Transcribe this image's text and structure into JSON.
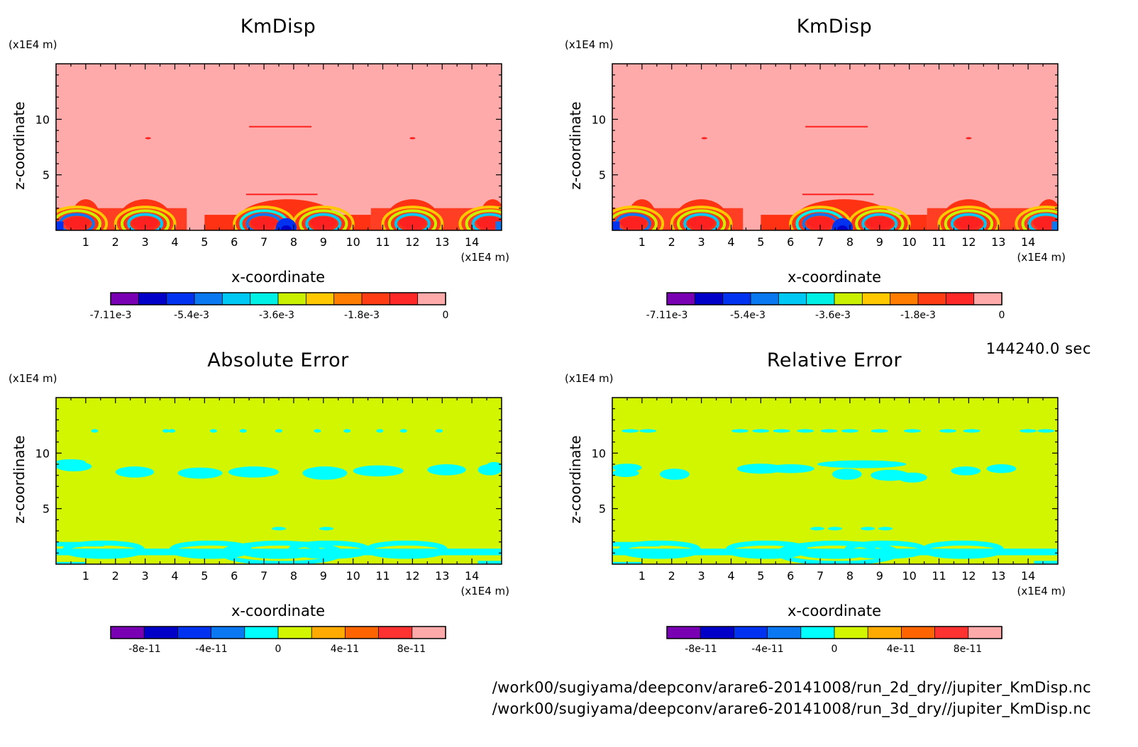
{
  "time_label": "144240.0 sec",
  "footer": {
    "file1": "/work00/sugiyama/deepconv/arare6-20141008/run_2d_dry//jupiter_KmDisp.nc",
    "file2": "/work00/sugiyama/deepconv/arare6-20141008/run_3d_dry//jupiter_KmDisp.nc"
  },
  "palette": [
    "#7a00b4",
    "#0000c8",
    "#0032f0",
    "#0a78f0",
    "#00c8f5",
    "#00f0e6",
    "#c8f000",
    "#ffc800",
    "#ff7d00",
    "#ff3c14",
    "#ff2828",
    "#ffaaaa"
  ],
  "chart_data": [
    {
      "id": "top-left",
      "type": "heatmap",
      "title": "KmDisp",
      "xlabel": "x-coordinate",
      "ylabel": "z-coordinate",
      "x_unit": "(x1E4 m)",
      "y_unit": "(x1E4 m)",
      "xlim": [
        0,
        15
      ],
      "ylim": [
        0,
        15
      ],
      "x_ticks": [
        "1",
        "2",
        "3",
        "4",
        "5",
        "6",
        "7",
        "8",
        "9",
        "10",
        "11",
        "12",
        "13",
        "14"
      ],
      "y_ticks": [
        "5",
        "10"
      ],
      "background_color": "#ffaaaa",
      "colorbar": {
        "colors": [
          "#7a00b4",
          "#0000c8",
          "#0032f0",
          "#0a78f0",
          "#00c8f5",
          "#00f0e6",
          "#c8f000",
          "#ffc800",
          "#ff7d00",
          "#ff3c14",
          "#ff2828",
          "#ffaaaa"
        ],
        "labels": [
          "-7.11e-3",
          "-5.4e-3",
          "-3.6e-3",
          "-1.8e-3",
          "0"
        ]
      },
      "features": "dispersion concentrated below z=2 (x1E4 m) in cells near x=3, x=7-9, x=12; thin negative bands near z=3.2 and z=9.3"
    },
    {
      "id": "top-right",
      "type": "heatmap",
      "title": "KmDisp",
      "xlabel": "x-coordinate",
      "ylabel": "z-coordinate",
      "x_unit": "(x1E4 m)",
      "y_unit": "(x1E4 m)",
      "xlim": [
        0,
        15
      ],
      "ylim": [
        0,
        15
      ],
      "x_ticks": [
        "1",
        "2",
        "3",
        "4",
        "5",
        "6",
        "7",
        "8",
        "9",
        "10",
        "11",
        "12",
        "13",
        "14"
      ],
      "y_ticks": [
        "5",
        "10"
      ],
      "background_color": "#ffaaaa",
      "colorbar": {
        "colors": [
          "#7a00b4",
          "#0000c8",
          "#0032f0",
          "#0a78f0",
          "#00c8f5",
          "#00f0e6",
          "#c8f000",
          "#ffc800",
          "#ff7d00",
          "#ff3c14",
          "#ff2828",
          "#ffaaaa"
        ],
        "labels": [
          "-7.11e-3",
          "-5.4e-3",
          "-3.6e-3",
          "-1.8e-3",
          "0"
        ]
      },
      "features": "identical to top-left"
    },
    {
      "id": "bottom-left",
      "type": "heatmap",
      "title": "Absolute Error",
      "xlabel": "x-coordinate",
      "ylabel": "z-coordinate",
      "x_unit": "(x1E4 m)",
      "y_unit": "(x1E4 m)",
      "xlim": [
        0,
        15
      ],
      "ylim": [
        0,
        15
      ],
      "x_ticks": [
        "1",
        "2",
        "3",
        "4",
        "5",
        "6",
        "7",
        "8",
        "9",
        "10",
        "11",
        "12",
        "13",
        "14"
      ],
      "y_ticks": [
        "5",
        "10"
      ],
      "background_color": "#d2f500",
      "colorbar": {
        "colors": [
          "#7a00b4",
          "#0000c8",
          "#0032f0",
          "#0a78f0",
          "#00ffff",
          "#d2f500",
          "#ffaa00",
          "#ff6400",
          "#ff3232",
          "#ffaaaa"
        ],
        "labels": [
          "-8e-11",
          "-4e-11",
          "0",
          "4e-11",
          "8e-11"
        ]
      },
      "features": "cyan (slightly negative) bands near z=0.5-2, z=8-9.3, z=12"
    },
    {
      "id": "bottom-right",
      "type": "heatmap",
      "title": "Relative Error",
      "xlabel": "x-coordinate",
      "ylabel": "z-coordinate",
      "x_unit": "(x1E4 m)",
      "y_unit": "(x1E4 m)",
      "xlim": [
        0,
        15
      ],
      "ylim": [
        0,
        15
      ],
      "x_ticks": [
        "1",
        "2",
        "3",
        "4",
        "5",
        "6",
        "7",
        "8",
        "9",
        "10",
        "11",
        "12",
        "13",
        "14"
      ],
      "y_ticks": [
        "5",
        "10"
      ],
      "background_color": "#d2f500",
      "colorbar": {
        "colors": [
          "#7a00b4",
          "#0000c8",
          "#0032f0",
          "#0a78f0",
          "#00ffff",
          "#d2f500",
          "#ffaa00",
          "#ff6400",
          "#ff3232",
          "#ffaaaa"
        ],
        "labels": [
          "-8e-11",
          "-4e-11",
          "0",
          "4e-11",
          "8e-11"
        ]
      },
      "features": "cyan bands near z=0.5-2, z=7.5-9.3, z=12"
    }
  ]
}
